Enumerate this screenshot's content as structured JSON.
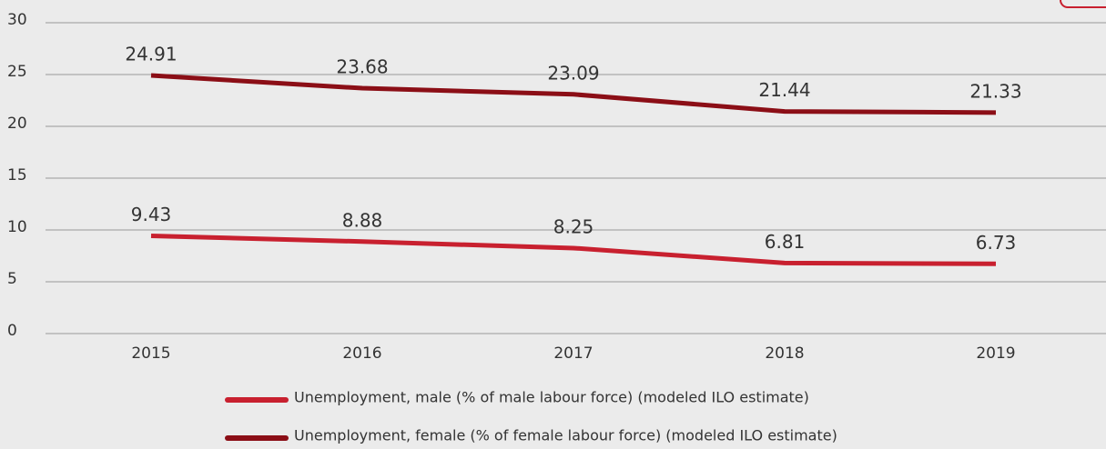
{
  "chart_data": {
    "type": "line",
    "categories": [
      "2015",
      "2016",
      "2017",
      "2018",
      "2019"
    ],
    "series": [
      {
        "name": "Unemployment, male (% of male labour force) (modeled ILO estimate)",
        "color": "#c8202f",
        "values": [
          9.43,
          8.88,
          8.25,
          6.81,
          6.73
        ]
      },
      {
        "name": "Unemployment, female (% of female labour force) (modeled ILO estimate)",
        "color": "#8b0e16",
        "values": [
          24.91,
          23.68,
          23.09,
          21.44,
          21.33
        ]
      }
    ],
    "ylim": [
      0,
      30
    ],
    "yticks": [
      0,
      5,
      10,
      15,
      20,
      25,
      30
    ],
    "grid": true
  }
}
